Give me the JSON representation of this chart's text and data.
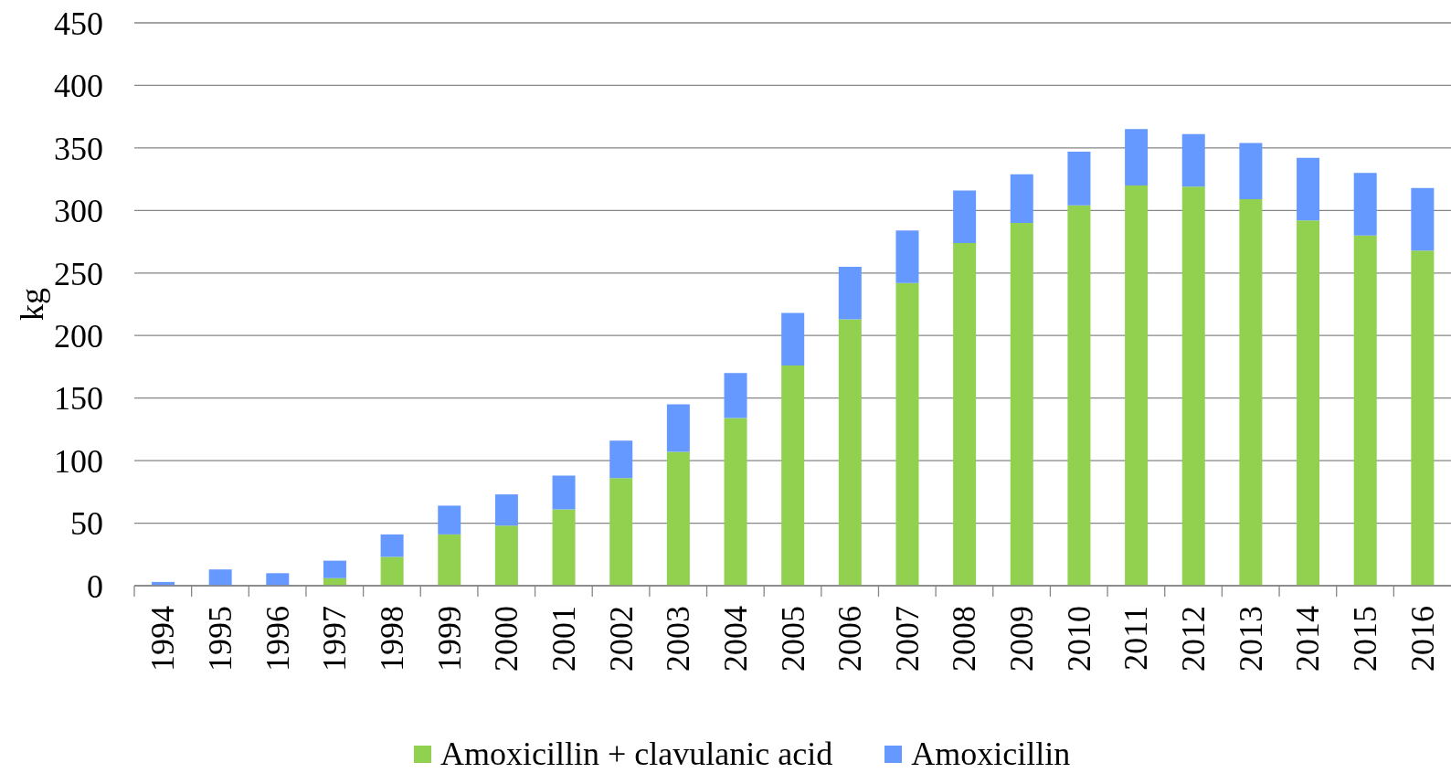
{
  "chart_data": {
    "type": "bar",
    "stacked": true,
    "ylabel": "kg",
    "categories": [
      "1994",
      "1995",
      "1996",
      "1997",
      "1998",
      "1999",
      "2000",
      "2001",
      "2002",
      "2003",
      "2004",
      "2005",
      "2006",
      "2007",
      "2008",
      "2009",
      "2010",
      "2011",
      "2012",
      "2013",
      "2014",
      "2015",
      "2016"
    ],
    "series": [
      {
        "name": "Amoxicillin + clavulanic acid",
        "color": "#92d050",
        "values": [
          0,
          0,
          0,
          6,
          23,
          41,
          48,
          61,
          86,
          107,
          134,
          176,
          213,
          242,
          274,
          290,
          304,
          320,
          319,
          309,
          292,
          280,
          268
        ]
      },
      {
        "name": "Amoxicillin",
        "color": "#6699ff",
        "values": [
          3,
          13,
          10,
          14,
          18,
          23,
          25,
          27,
          30,
          38,
          36,
          42,
          42,
          42,
          42,
          39,
          43,
          45,
          42,
          45,
          50,
          50,
          50
        ]
      }
    ],
    "ylim": [
      0,
      450
    ],
    "yticks": [
      0,
      50,
      100,
      150,
      200,
      250,
      300,
      350,
      400,
      450
    ],
    "grid": "y",
    "legend": "bottom"
  }
}
